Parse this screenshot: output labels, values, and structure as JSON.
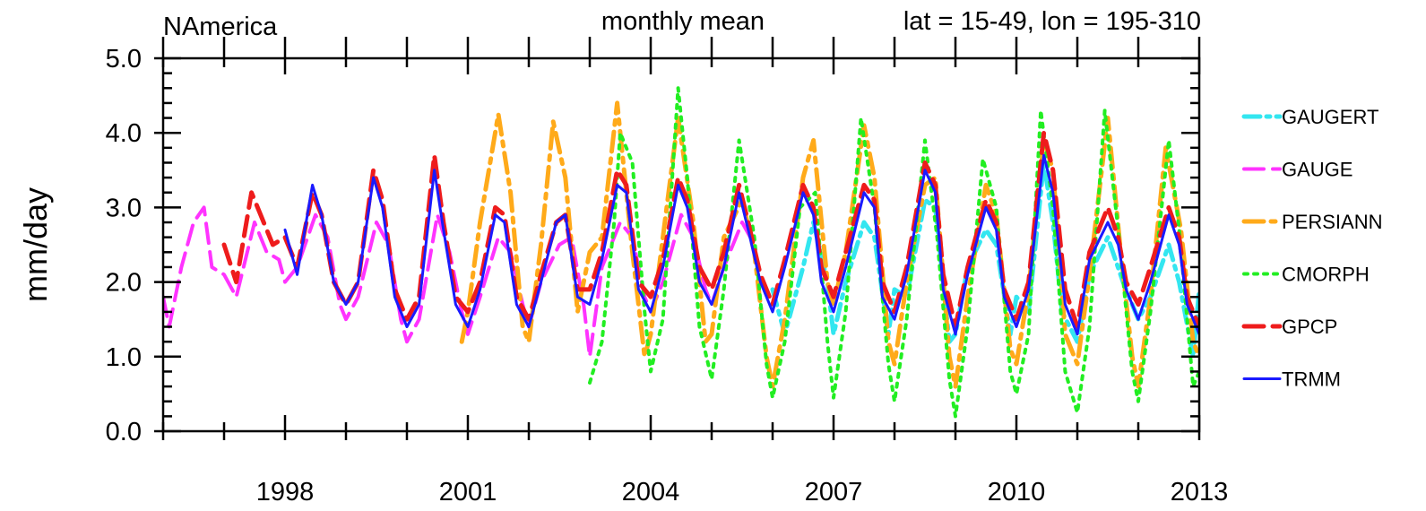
{
  "chart_data": {
    "type": "line",
    "title_left": "NAmerica",
    "title_center": "monthly mean",
    "title_right": "lat = 15-49, lon = 195-310",
    "xlabel": "",
    "ylabel": "mm/day",
    "xlim": [
      1996.0,
      2013.0
    ],
    "ylim": [
      0.0,
      5.0
    ],
    "x_ticks": [
      1998,
      2001,
      2004,
      2007,
      2010,
      2013
    ],
    "x_tick_labels": [
      "1998",
      "2001",
      "2004",
      "2007",
      "2010",
      "2013"
    ],
    "y_ticks": [
      0.0,
      1.0,
      2.0,
      3.0,
      4.0,
      5.0
    ],
    "y_tick_labels": [
      "0.0",
      "1.0",
      "2.0",
      "3.0",
      "4.0",
      "5.0"
    ],
    "grid": false,
    "legend_position": "right",
    "series": [
      {
        "name": "GAUGERT",
        "color": "#33e6f0",
        "dash": "dash-dot",
        "width": 5,
        "x": [
          2006.0,
          2006.2,
          2006.5,
          2006.67,
          2006.9,
          2007.0,
          2007.2,
          2007.5,
          2007.67,
          2007.9,
          2008.0,
          2008.2,
          2008.5,
          2008.67,
          2008.9,
          2009.0,
          2009.2,
          2009.5,
          2009.67,
          2009.9,
          2010.0,
          2010.2,
          2010.45,
          2010.6,
          2010.75,
          2011.0,
          2011.2,
          2011.5,
          2011.75,
          2012.0,
          2012.2,
          2012.5,
          2012.67,
          2012.9,
          2013.0
        ],
        "y": [
          1.9,
          1.3,
          2.2,
          2.8,
          2.0,
          1.3,
          2.0,
          2.8,
          2.6,
          1.3,
          1.9,
          1.8,
          3.1,
          3.0,
          1.2,
          1.3,
          2.2,
          2.7,
          2.5,
          1.3,
          1.8,
          1.6,
          3.6,
          2.8,
          1.6,
          1.2,
          2.1,
          2.6,
          2.0,
          1.5,
          1.8,
          2.5,
          2.0,
          1.0,
          1.9
        ]
      },
      {
        "name": "GAUGE",
        "color": "#ff33ff",
        "dash": "long-dash",
        "width": 4,
        "x": [
          1996.0,
          1996.1,
          1996.3,
          1996.5,
          1996.67,
          1996.8,
          1997.0,
          1997.2,
          1997.5,
          1997.7,
          1997.9,
          1998.0,
          1998.2,
          1998.5,
          1998.7,
          1998.9,
          1999.0,
          1999.2,
          1999.5,
          1999.7,
          1999.9,
          2000.0,
          2000.2,
          2000.5,
          2000.7,
          2000.9,
          2001.0,
          2001.2,
          2001.5,
          2001.7,
          2001.9,
          2002.0,
          2002.2,
          2002.5,
          2002.7,
          2002.9,
          2003.0,
          2003.2,
          2003.5,
          2003.7,
          2003.9,
          2004.0,
          2004.2,
          2004.5,
          2004.7,
          2004.9,
          2005.0,
          2005.2,
          2005.5,
          2005.7
        ],
        "y": [
          1.8,
          1.4,
          2.2,
          2.8,
          3.0,
          2.2,
          2.1,
          1.8,
          2.8,
          2.4,
          2.3,
          2.0,
          2.2,
          2.9,
          2.6,
          1.7,
          1.5,
          1.8,
          2.8,
          2.5,
          1.5,
          1.2,
          1.5,
          2.9,
          2.4,
          1.6,
          1.3,
          1.8,
          2.6,
          2.4,
          1.7,
          1.4,
          2.0,
          2.5,
          2.6,
          1.7,
          1.0,
          2.2,
          2.8,
          2.6,
          1.8,
          1.6,
          2.0,
          2.9,
          2.6,
          1.9,
          1.7,
          2.2,
          2.8,
          2.5
        ]
      },
      {
        "name": "PERSIANN",
        "color": "#ffaa1a",
        "dash": "long-dash-dot",
        "width": 5,
        "x": [
          2000.9,
          2001.0,
          2001.2,
          2001.5,
          2001.7,
          2001.9,
          2002.0,
          2002.2,
          2002.4,
          2002.6,
          2002.8,
          2003.0,
          2003.2,
          2003.45,
          2003.7,
          2003.9,
          2004.0,
          2004.2,
          2004.45,
          2004.7,
          2004.9,
          2005.0,
          2005.2,
          2005.5,
          2005.7,
          2005.9,
          2006.0,
          2006.2,
          2006.5,
          2006.67,
          2006.9,
          2007.0,
          2007.2,
          2007.5,
          2007.67,
          2007.9,
          2008.0,
          2008.2,
          2008.5,
          2008.67,
          2008.9,
          2009.0,
          2009.2,
          2009.5,
          2009.67,
          2009.9,
          2010.0,
          2010.2,
          2010.45,
          2010.6,
          2010.8,
          2011.0,
          2011.2,
          2011.5,
          2011.7,
          2011.9,
          2012.0,
          2012.2,
          2012.45,
          2012.7,
          2012.9,
          2013.0
        ],
        "y": [
          1.2,
          1.6,
          2.8,
          4.25,
          3.2,
          1.4,
          1.2,
          2.5,
          4.15,
          3.4,
          1.6,
          2.4,
          2.6,
          4.4,
          2.4,
          1.0,
          1.3,
          2.6,
          4.2,
          2.8,
          1.2,
          1.3,
          2.6,
          3.1,
          2.4,
          1.0,
          0.6,
          1.5,
          3.4,
          3.9,
          2.0,
          1.7,
          2.4,
          4.1,
          3.4,
          1.2,
          0.9,
          2.0,
          3.3,
          3.4,
          1.0,
          0.6,
          1.8,
          3.3,
          2.9,
          1.1,
          0.9,
          1.9,
          3.9,
          3.5,
          1.3,
          0.9,
          2.1,
          4.2,
          2.5,
          1.0,
          0.6,
          1.8,
          3.8,
          2.7,
          1.2,
          1.0
        ]
      },
      {
        "name": "CMORPH",
        "color": "#22ee22",
        "dash": "dot",
        "width": 4,
        "x": [
          2003.0,
          2003.2,
          2003.4,
          2003.5,
          2003.7,
          2003.9,
          2004.0,
          2004.2,
          2004.45,
          2004.6,
          2004.8,
          2005.0,
          2005.2,
          2005.45,
          2005.7,
          2005.9,
          2006.0,
          2006.2,
          2006.45,
          2006.7,
          2006.9,
          2007.0,
          2007.2,
          2007.45,
          2007.67,
          2007.9,
          2008.0,
          2008.2,
          2008.5,
          2008.7,
          2008.9,
          2009.0,
          2009.2,
          2009.45,
          2009.67,
          2009.9,
          2010.0,
          2010.2,
          2010.4,
          2010.6,
          2010.8,
          2011.0,
          2011.2,
          2011.45,
          2011.67,
          2011.9,
          2012.0,
          2012.2,
          2012.5,
          2012.67,
          2012.9,
          2013.0
        ],
        "y": [
          0.65,
          1.2,
          2.8,
          4.0,
          3.6,
          1.6,
          0.8,
          1.5,
          4.6,
          3.4,
          1.4,
          0.7,
          1.9,
          3.9,
          2.6,
          0.9,
          0.45,
          1.2,
          3.0,
          3.2,
          1.2,
          0.45,
          1.6,
          4.2,
          3.0,
          0.9,
          0.4,
          1.5,
          3.9,
          2.6,
          0.7,
          0.2,
          1.4,
          3.65,
          3.0,
          0.8,
          0.5,
          1.3,
          4.3,
          3.0,
          0.8,
          0.25,
          1.4,
          4.3,
          2.7,
          0.8,
          0.4,
          1.6,
          3.9,
          2.7,
          0.6,
          0.8
        ]
      },
      {
        "name": "GPCP",
        "color": "#ee1c1c",
        "dash": "long-dash",
        "width": 5,
        "x": [
          1997.0,
          1997.2,
          1997.45,
          1997.6,
          1997.8,
          1998.0,
          1998.2,
          1998.45,
          1998.6,
          1998.8,
          1999.0,
          1999.2,
          1999.45,
          1999.6,
          1999.8,
          2000.0,
          2000.2,
          2000.45,
          2000.6,
          2000.8,
          2001.0,
          2001.2,
          2001.45,
          2001.6,
          2001.8,
          2002.0,
          2002.2,
          2002.45,
          2002.6,
          2002.8,
          2003.0,
          2003.2,
          2003.45,
          2003.6,
          2003.8,
          2004.0,
          2004.2,
          2004.45,
          2004.6,
          2004.8,
          2005.0,
          2005.2,
          2005.45,
          2005.6,
          2005.8,
          2006.0,
          2006.2,
          2006.5,
          2006.67,
          2006.8,
          2007.0,
          2007.2,
          2007.5,
          2007.67,
          2007.8,
          2008.0,
          2008.2,
          2008.5,
          2008.67,
          2008.8,
          2009.0,
          2009.2,
          2009.5,
          2009.67,
          2009.8,
          2010.0,
          2010.2,
          2010.45,
          2010.6,
          2010.8,
          2011.0,
          2011.2,
          2011.5,
          2011.67,
          2011.8,
          2012.0,
          2012.2,
          2012.5,
          2012.67,
          2012.8,
          2013.0
        ],
        "y": [
          2.5,
          2.0,
          3.2,
          2.9,
          2.5,
          2.6,
          2.2,
          3.2,
          2.9,
          2.0,
          1.7,
          2.0,
          3.5,
          3.1,
          1.9,
          1.5,
          1.8,
          3.7,
          2.8,
          1.8,
          1.6,
          2.0,
          3.0,
          2.9,
          1.8,
          1.5,
          2.1,
          2.8,
          2.9,
          1.9,
          1.9,
          2.4,
          3.5,
          3.3,
          2.0,
          1.8,
          2.3,
          3.4,
          3.1,
          2.2,
          1.9,
          2.4,
          3.3,
          2.8,
          2.1,
          1.7,
          2.3,
          3.3,
          3.0,
          2.2,
          1.8,
          2.4,
          3.3,
          3.1,
          2.0,
          1.6,
          2.2,
          3.6,
          3.3,
          2.1,
          1.4,
          2.2,
          3.1,
          2.8,
          1.9,
          1.5,
          2.0,
          4.0,
          3.5,
          1.9,
          1.4,
          2.4,
          3.0,
          2.6,
          2.0,
          1.7,
          2.2,
          3.0,
          2.6,
          1.8,
          1.4
        ]
      },
      {
        "name": "TRMM",
        "color": "#1a1aff",
        "dash": "solid",
        "width": 3,
        "x": [
          1998.0,
          1998.2,
          1998.45,
          1998.6,
          1998.8,
          1999.0,
          1999.2,
          1999.45,
          1999.6,
          1999.8,
          2000.0,
          2000.2,
          2000.45,
          2000.6,
          2000.8,
          2001.0,
          2001.2,
          2001.45,
          2001.6,
          2001.8,
          2002.0,
          2002.2,
          2002.45,
          2002.6,
          2002.8,
          2003.0,
          2003.2,
          2003.45,
          2003.6,
          2003.8,
          2004.0,
          2004.2,
          2004.45,
          2004.6,
          2004.8,
          2005.0,
          2005.2,
          2005.45,
          2005.6,
          2005.8,
          2006.0,
          2006.2,
          2006.5,
          2006.67,
          2006.8,
          2007.0,
          2007.2,
          2007.5,
          2007.67,
          2007.8,
          2008.0,
          2008.2,
          2008.5,
          2008.67,
          2008.8,
          2009.0,
          2009.2,
          2009.5,
          2009.67,
          2009.8,
          2010.0,
          2010.2,
          2010.45,
          2010.6,
          2010.8,
          2011.0,
          2011.2,
          2011.5,
          2011.67,
          2011.8,
          2012.0,
          2012.2,
          2012.5,
          2012.67,
          2012.8,
          2013.0
        ],
        "y": [
          2.7,
          2.1,
          3.3,
          2.9,
          2.0,
          1.7,
          2.0,
          3.4,
          3.0,
          1.8,
          1.4,
          1.7,
          3.5,
          2.7,
          1.7,
          1.4,
          1.9,
          2.9,
          2.8,
          1.7,
          1.4,
          2.0,
          2.8,
          2.9,
          1.8,
          1.7,
          2.3,
          3.3,
          3.2,
          1.9,
          1.6,
          2.2,
          3.3,
          3.0,
          2.0,
          1.7,
          2.2,
          3.2,
          2.7,
          2.0,
          1.6,
          2.2,
          3.2,
          2.9,
          2.0,
          1.6,
          2.2,
          3.2,
          3.0,
          1.8,
          1.5,
          2.1,
          3.5,
          3.2,
          1.9,
          1.3,
          2.1,
          3.0,
          2.7,
          1.8,
          1.4,
          1.9,
          3.7,
          3.2,
          1.7,
          1.3,
          2.3,
          2.8,
          2.5,
          1.9,
          1.5,
          2.0,
          2.9,
          2.5,
          1.7,
          1.3
        ]
      }
    ]
  }
}
